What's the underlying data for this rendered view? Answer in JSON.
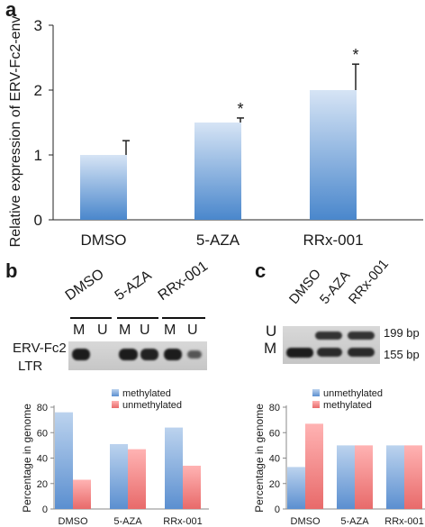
{
  "panels": {
    "a": {
      "letter": "a"
    },
    "b": {
      "letter": "b",
      "lane_groups": [
        "DMSO",
        "5-AZA",
        "RRx-001"
      ],
      "lane_labels": [
        "M",
        "U",
        "M",
        "U",
        "M",
        "U"
      ],
      "row_label_line1": "ERV-Fc2",
      "row_label_line2": "LTR"
    },
    "c": {
      "letter": "c",
      "lane_labels": [
        "DMSO",
        "5-AZA",
        "RRx-001"
      ],
      "band_letters": [
        "U",
        "M"
      ],
      "size_labels": [
        "199 bp",
        "155 bp"
      ]
    }
  },
  "colors": {
    "bar_top": "#d6e4f5",
    "bar_bottom": "#4a87cc",
    "methylated_top": "#bcd3ee",
    "methylated_bottom": "#5b8fd0",
    "unmethylated_top": "#ffb3b3",
    "unmethylated_bottom": "#e86a6a"
  },
  "chart_data": [
    {
      "type": "bar",
      "panel": "a",
      "categories": [
        "DMSO",
        "5-AZA",
        "RRx-001"
      ],
      "values": [
        1.0,
        1.5,
        2.0
      ],
      "error_bars": [
        0.22,
        0.07,
        0.4
      ],
      "significance": [
        "",
        "*",
        "*"
      ],
      "ylabel": "Relative expression of ERV-Fc2-env",
      "ylim": [
        0,
        3
      ],
      "yticks": [
        0,
        1,
        2,
        3
      ],
      "grid": false
    },
    {
      "type": "bar",
      "panel": "b",
      "categories": [
        "DMSO",
        "5-AZA",
        "RRx-001"
      ],
      "series": [
        {
          "name": "methylated",
          "values": [
            76,
            51,
            64
          ]
        },
        {
          "name": "unmethylated",
          "values": [
            23,
            47,
            34
          ]
        }
      ],
      "ylabel": "Percentage in genome",
      "ylim": [
        0,
        80
      ],
      "yticks": [
        0,
        20,
        40,
        60,
        80
      ],
      "legend": "top-center"
    },
    {
      "type": "bar",
      "panel": "c",
      "categories": [
        "DMSO",
        "5-AZA",
        "RRx-001"
      ],
      "series": [
        {
          "name": "unmethylated",
          "values": [
            33,
            50,
            50
          ]
        },
        {
          "name": "methylated",
          "values": [
            67,
            50,
            50
          ]
        }
      ],
      "ylabel": "Percentage in genome",
      "ylim": [
        0,
        80
      ],
      "yticks": [
        0,
        20,
        40,
        60,
        80
      ],
      "legend": "top-center"
    }
  ]
}
